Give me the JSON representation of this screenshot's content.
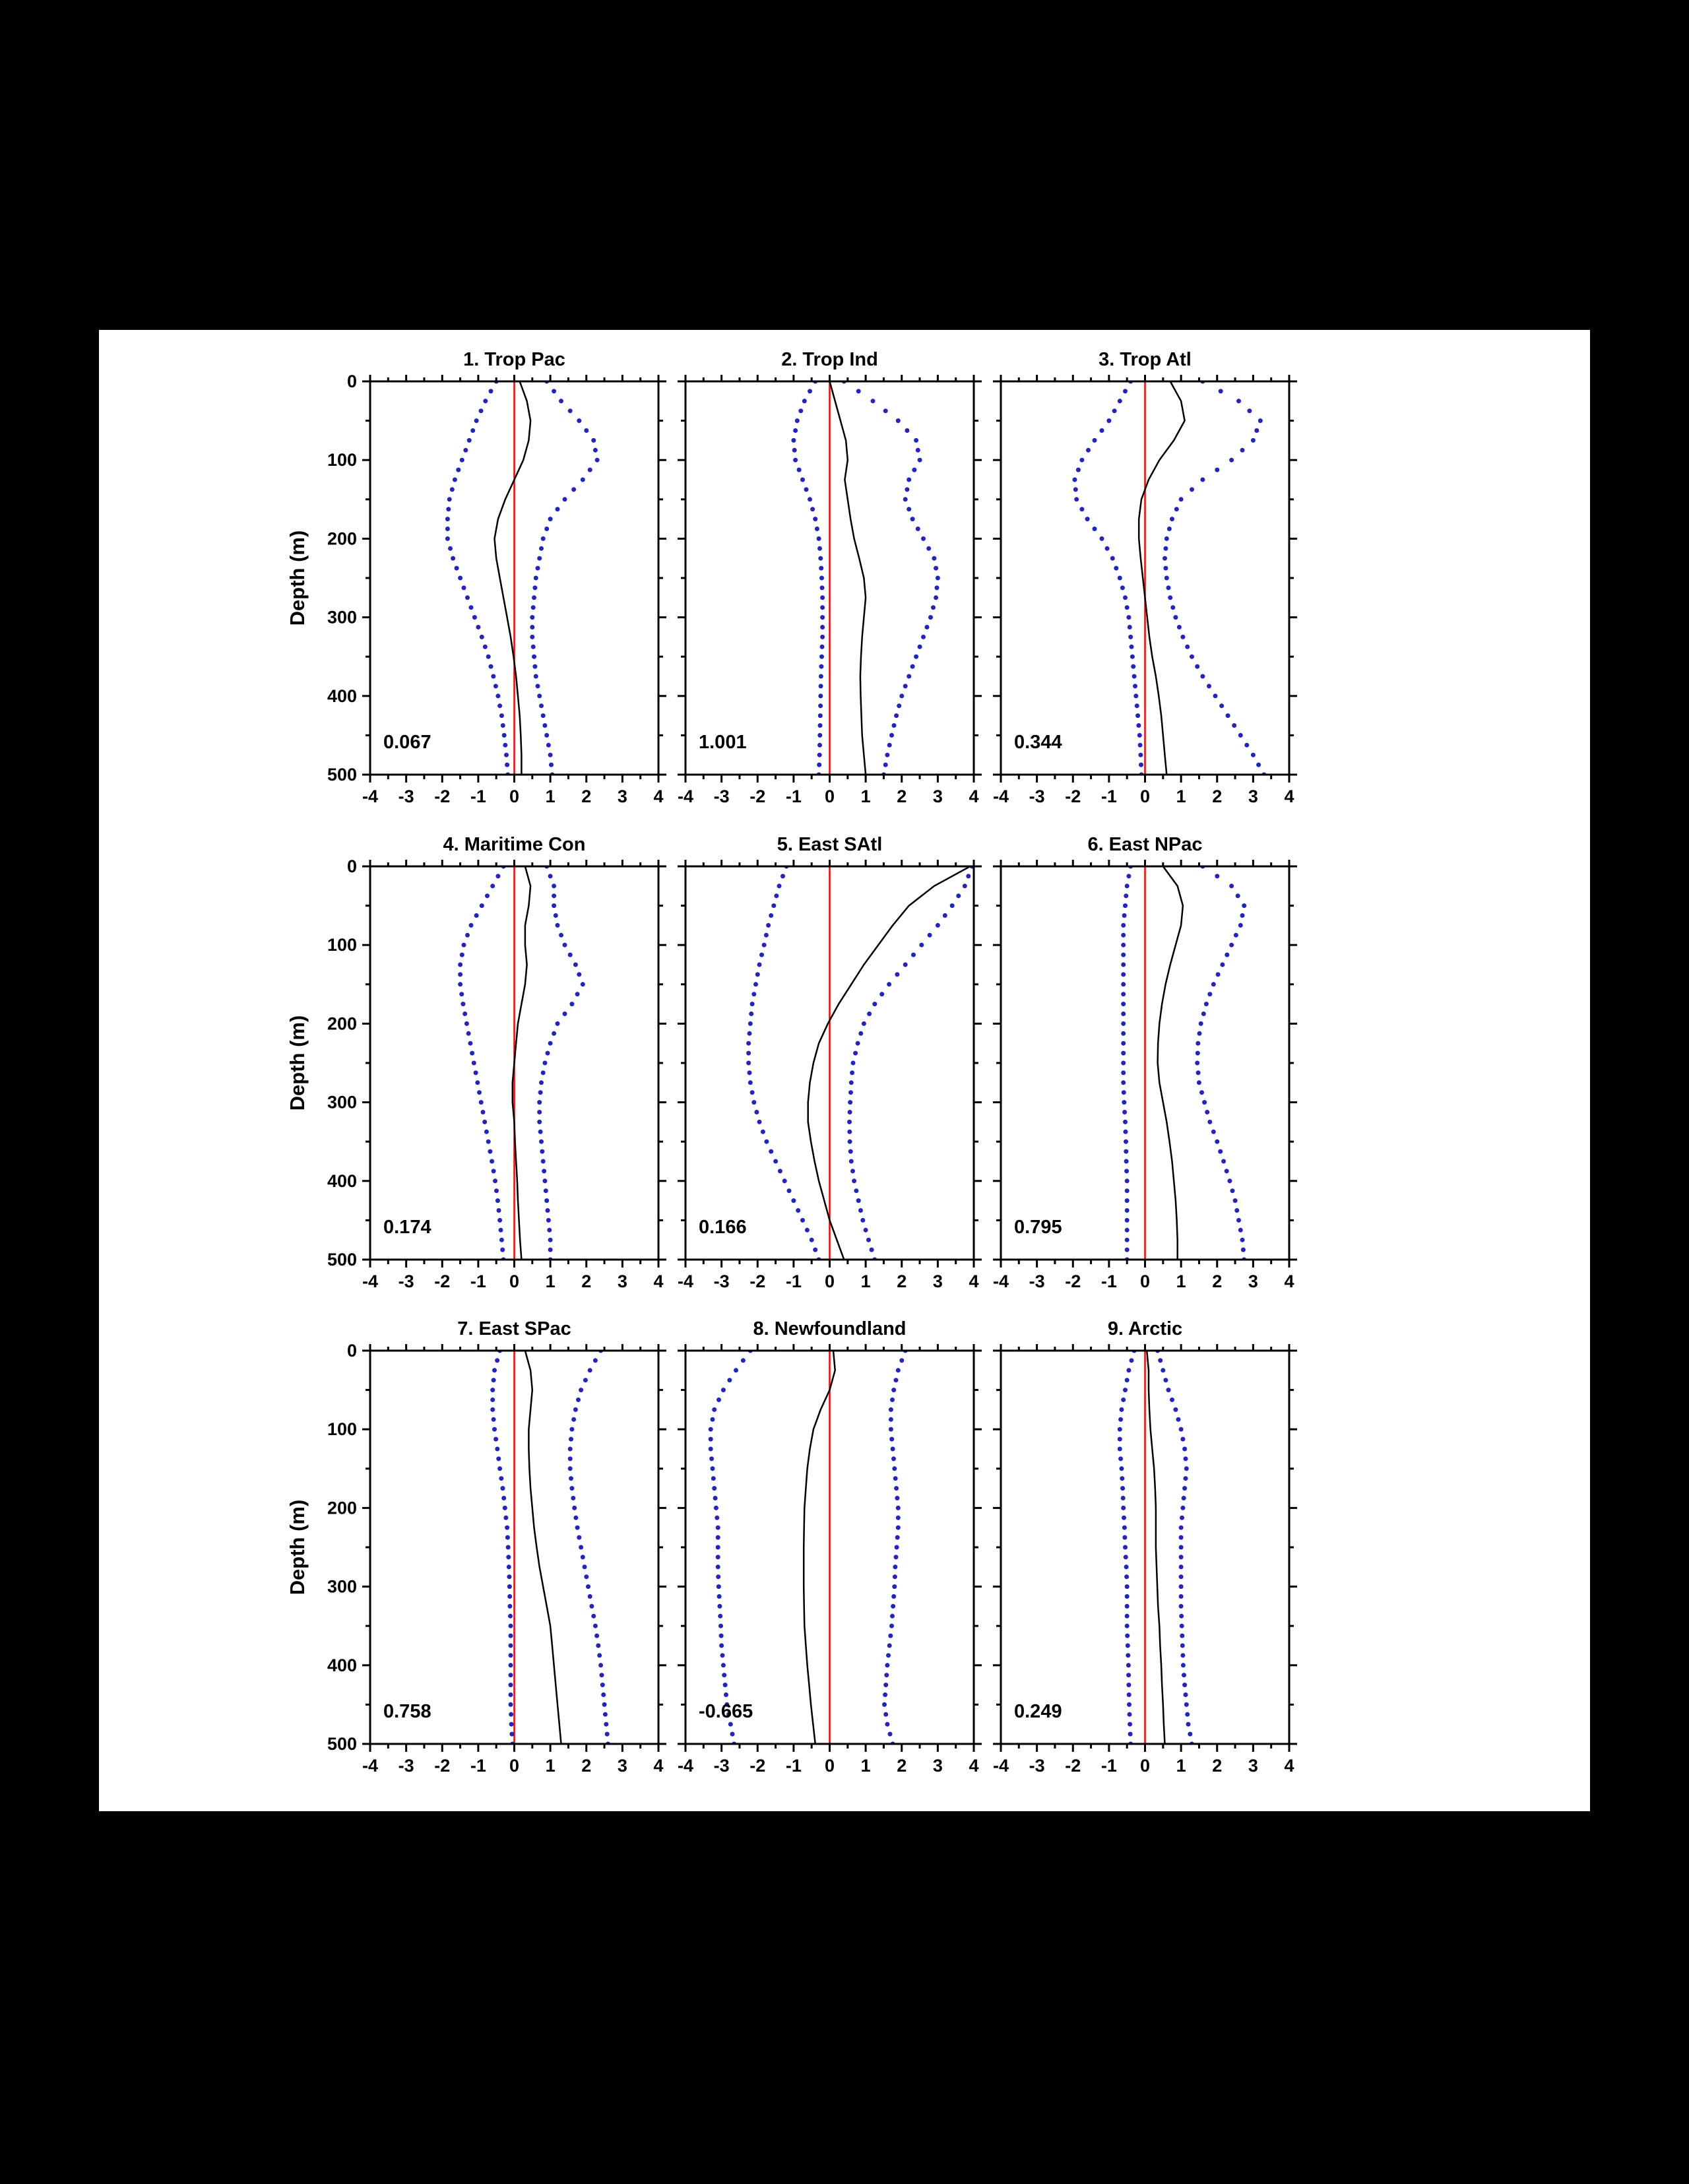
{
  "figure": {
    "background_color": "#000000",
    "panel_background": "#ffffff",
    "frame_color": "#000000",
    "zero_line_color": "#ff0000",
    "dot_color": "#2222cc",
    "mean_line_color": "#000000"
  },
  "chart_data": {
    "type": "line",
    "layout": "3x3 grid of vertical ocean depth profiles, depth increases downward",
    "ylabel": "Depth (m)",
    "xlim": [
      -4,
      4
    ],
    "x_ticks": [
      -4,
      -3,
      -2,
      -1,
      0,
      1,
      2,
      3,
      4
    ],
    "depth_ticks": [
      0,
      100,
      200,
      300,
      400,
      500
    ],
    "zero_line_x": 0,
    "depth_grid": [
      0,
      25,
      50,
      75,
      100,
      125,
      150,
      175,
      200,
      225,
      250,
      275,
      300,
      325,
      350,
      375,
      400,
      425,
      450,
      475,
      500
    ],
    "panels": [
      {
        "title": "1. Trop Pac",
        "annotation": "0.067",
        "mean": [
          0.15,
          0.35,
          0.45,
          0.4,
          0.25,
          0.0,
          -0.25,
          -0.45,
          -0.55,
          -0.5,
          -0.4,
          -0.3,
          -0.2,
          -0.1,
          -0.02,
          0.05,
          0.1,
          0.15,
          0.18,
          0.2,
          0.2
        ],
        "upper": [
          0.9,
          1.3,
          1.8,
          2.2,
          2.3,
          1.9,
          1.4,
          1.0,
          0.8,
          0.7,
          0.6,
          0.55,
          0.5,
          0.5,
          0.55,
          0.6,
          0.7,
          0.8,
          0.9,
          1.0,
          1.05
        ],
        "lower": [
          -0.5,
          -0.8,
          -1.05,
          -1.25,
          -1.45,
          -1.65,
          -1.8,
          -1.85,
          -1.85,
          -1.7,
          -1.5,
          -1.3,
          -1.1,
          -0.9,
          -0.72,
          -0.58,
          -0.45,
          -0.35,
          -0.28,
          -0.22,
          -0.18
        ]
      },
      {
        "title": "2. Trop Ind",
        "annotation": "1.001",
        "mean": [
          0.0,
          0.15,
          0.3,
          0.45,
          0.5,
          0.42,
          0.5,
          0.58,
          0.68,
          0.82,
          0.95,
          1.0,
          0.95,
          0.9,
          0.87,
          0.85,
          0.86,
          0.88,
          0.9,
          0.95,
          1.0
        ],
        "upper": [
          0.4,
          1.2,
          1.9,
          2.4,
          2.5,
          2.2,
          2.1,
          2.3,
          2.6,
          2.9,
          3.0,
          2.95,
          2.8,
          2.6,
          2.4,
          2.2,
          2.0,
          1.85,
          1.72,
          1.6,
          1.5
        ],
        "lower": [
          -0.4,
          -0.7,
          -0.9,
          -1.0,
          -0.95,
          -0.75,
          -0.55,
          -0.4,
          -0.3,
          -0.25,
          -0.22,
          -0.2,
          -0.2,
          -0.2,
          -0.22,
          -0.24,
          -0.25,
          -0.26,
          -0.27,
          -0.28,
          -0.3
        ]
      },
      {
        "title": "3. Trop Atl",
        "annotation": "0.344",
        "mean": [
          0.7,
          1.0,
          1.1,
          0.8,
          0.4,
          0.1,
          -0.1,
          -0.17,
          -0.17,
          -0.12,
          -0.06,
          0.0,
          0.06,
          0.12,
          0.2,
          0.3,
          0.38,
          0.45,
          0.5,
          0.55,
          0.6
        ],
        "upper": [
          1.6,
          2.6,
          3.2,
          3.0,
          2.4,
          1.6,
          1.0,
          0.75,
          0.6,
          0.55,
          0.6,
          0.7,
          0.85,
          1.05,
          1.3,
          1.6,
          1.95,
          2.3,
          2.65,
          3.0,
          3.3
        ],
        "lower": [
          -0.4,
          -0.7,
          -1.0,
          -1.4,
          -1.75,
          -1.95,
          -1.9,
          -1.6,
          -1.2,
          -0.9,
          -0.7,
          -0.55,
          -0.45,
          -0.4,
          -0.35,
          -0.3,
          -0.25,
          -0.2,
          -0.15,
          -0.12,
          -0.1
        ]
      },
      {
        "title": "4. Maritime Con",
        "annotation": "0.174",
        "mean": [
          0.3,
          0.45,
          0.4,
          0.3,
          0.3,
          0.35,
          0.3,
          0.2,
          0.1,
          0.05,
          0.0,
          -0.05,
          -0.05,
          0.0,
          0.02,
          0.05,
          0.08,
          0.1,
          0.13,
          0.16,
          0.2
        ],
        "upper": [
          0.9,
          1.1,
          1.1,
          1.2,
          1.4,
          1.7,
          1.9,
          1.6,
          1.2,
          1.0,
          0.85,
          0.75,
          0.7,
          0.7,
          0.75,
          0.8,
          0.85,
          0.9,
          0.95,
          1.0,
          1.0
        ],
        "lower": [
          -0.3,
          -0.6,
          -0.9,
          -1.2,
          -1.4,
          -1.5,
          -1.5,
          -1.42,
          -1.32,
          -1.22,
          -1.12,
          -1.02,
          -0.92,
          -0.82,
          -0.72,
          -0.62,
          -0.53,
          -0.46,
          -0.4,
          -0.35,
          -0.3
        ]
      },
      {
        "title": "5. East SAtl",
        "annotation": "0.166",
        "mean": [
          3.9,
          2.9,
          2.2,
          1.75,
          1.35,
          0.95,
          0.6,
          0.25,
          -0.05,
          -0.3,
          -0.45,
          -0.55,
          -0.6,
          -0.6,
          -0.52,
          -0.42,
          -0.3,
          -0.15,
          0.0,
          0.2,
          0.4
        ],
        "upper": [
          3.95,
          3.75,
          3.4,
          3.0,
          2.55,
          2.1,
          1.65,
          1.25,
          0.95,
          0.78,
          0.65,
          0.6,
          0.57,
          0.55,
          0.56,
          0.6,
          0.68,
          0.8,
          0.92,
          1.08,
          1.25
        ],
        "lower": [
          -1.2,
          -1.4,
          -1.55,
          -1.7,
          -1.82,
          -1.95,
          -2.05,
          -2.15,
          -2.2,
          -2.25,
          -2.25,
          -2.2,
          -2.1,
          -1.95,
          -1.75,
          -1.5,
          -1.25,
          -1.0,
          -0.75,
          -0.5,
          -0.3
        ]
      },
      {
        "title": "6. East NPac",
        "annotation": "0.795",
        "mean": [
          0.5,
          0.9,
          1.05,
          1.0,
          0.85,
          0.7,
          0.57,
          0.47,
          0.4,
          0.36,
          0.35,
          0.4,
          0.5,
          0.6,
          0.68,
          0.75,
          0.8,
          0.85,
          0.88,
          0.9,
          0.9
        ],
        "upper": [
          1.6,
          2.4,
          2.75,
          2.65,
          2.4,
          2.15,
          1.9,
          1.7,
          1.55,
          1.47,
          1.45,
          1.5,
          1.65,
          1.8,
          2.0,
          2.18,
          2.35,
          2.5,
          2.6,
          2.7,
          2.75
        ],
        "lower": [
          -0.4,
          -0.5,
          -0.55,
          -0.6,
          -0.6,
          -0.6,
          -0.6,
          -0.6,
          -0.6,
          -0.6,
          -0.6,
          -0.6,
          -0.58,
          -0.55,
          -0.53,
          -0.52,
          -0.5,
          -0.5,
          -0.5,
          -0.5,
          -0.5
        ]
      },
      {
        "title": "7. East SPac",
        "annotation": "0.758",
        "mean": [
          0.3,
          0.45,
          0.5,
          0.45,
          0.4,
          0.4,
          0.42,
          0.45,
          0.5,
          0.55,
          0.62,
          0.7,
          0.8,
          0.9,
          1.0,
          1.05,
          1.1,
          1.15,
          1.2,
          1.25,
          1.3
        ],
        "upper": [
          2.4,
          2.1,
          1.85,
          1.7,
          1.6,
          1.55,
          1.55,
          1.6,
          1.67,
          1.75,
          1.85,
          1.95,
          2.05,
          2.15,
          2.25,
          2.33,
          2.4,
          2.45,
          2.5,
          2.55,
          2.6
        ],
        "lower": [
          -0.4,
          -0.55,
          -0.6,
          -0.6,
          -0.55,
          -0.47,
          -0.4,
          -0.32,
          -0.26,
          -0.2,
          -0.17,
          -0.15,
          -0.13,
          -0.12,
          -0.1,
          -0.1,
          -0.1,
          -0.1,
          -0.1,
          -0.08,
          -0.05
        ]
      },
      {
        "title": "8. Newfoundland",
        "annotation": "-0.665",
        "mean": [
          0.1,
          0.15,
          0.0,
          -0.25,
          -0.45,
          -0.55,
          -0.62,
          -0.66,
          -0.7,
          -0.71,
          -0.72,
          -0.72,
          -0.72,
          -0.71,
          -0.7,
          -0.66,
          -0.62,
          -0.57,
          -0.52,
          -0.46,
          -0.4
        ],
        "upper": [
          2.1,
          1.9,
          1.78,
          1.7,
          1.7,
          1.75,
          1.8,
          1.85,
          1.9,
          1.9,
          1.86,
          1.82,
          1.8,
          1.76,
          1.72,
          1.66,
          1.6,
          1.56,
          1.52,
          1.6,
          1.75
        ],
        "lower": [
          -2.2,
          -2.6,
          -2.95,
          -3.2,
          -3.3,
          -3.3,
          -3.25,
          -3.2,
          -3.15,
          -3.1,
          -3.1,
          -3.1,
          -3.08,
          -3.05,
          -3.02,
          -3.0,
          -2.95,
          -2.9,
          -2.85,
          -2.75,
          -2.65
        ]
      },
      {
        "title": "9. Arctic",
        "annotation": "0.249",
        "mean": [
          0.05,
          0.1,
          0.1,
          0.12,
          0.15,
          0.2,
          0.25,
          0.28,
          0.3,
          0.3,
          0.3,
          0.32,
          0.34,
          0.36,
          0.4,
          0.42,
          0.45,
          0.47,
          0.5,
          0.52,
          0.55
        ],
        "upper": [
          0.35,
          0.5,
          0.65,
          0.85,
          1.0,
          1.1,
          1.15,
          1.1,
          1.05,
          1.0,
          1.0,
          1.0,
          1.0,
          1.0,
          1.02,
          1.04,
          1.06,
          1.1,
          1.15,
          1.2,
          1.3
        ],
        "lower": [
          -0.3,
          -0.45,
          -0.55,
          -0.65,
          -0.7,
          -0.7,
          -0.65,
          -0.62,
          -0.6,
          -0.57,
          -0.55,
          -0.52,
          -0.5,
          -0.5,
          -0.5,
          -0.48,
          -0.46,
          -0.45,
          -0.44,
          -0.42,
          -0.4
        ]
      }
    ]
  }
}
